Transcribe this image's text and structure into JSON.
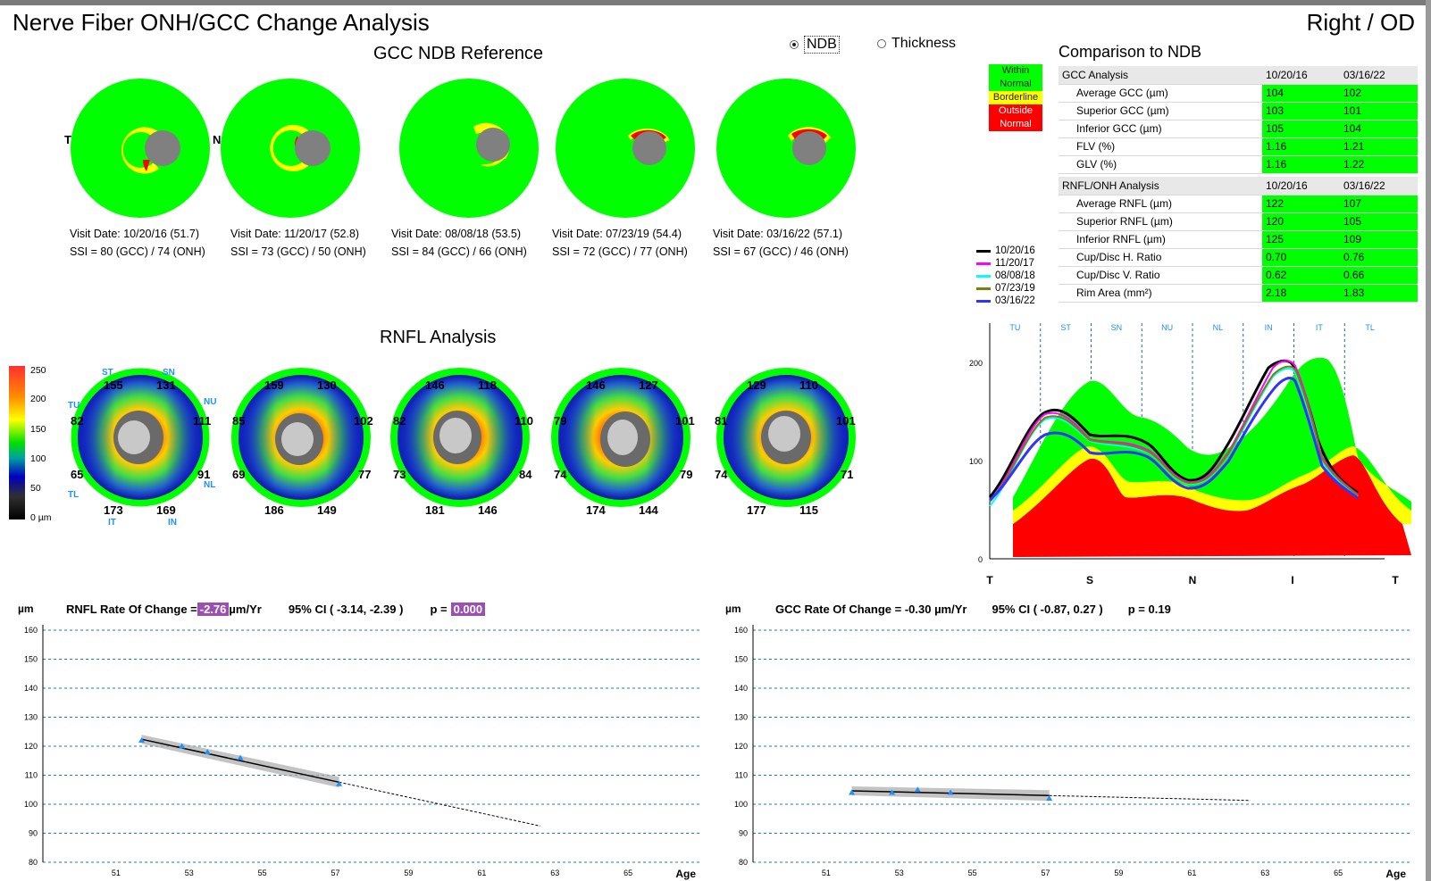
{
  "header": {
    "title": "Nerve Fiber ONH/GCC Change Analysis",
    "eye": "Right / OD"
  },
  "gcc_section": {
    "title": "GCC NDB Reference",
    "radio_ndb": "NDB",
    "radio_thickness": "Thickness",
    "label_t": "T",
    "label_n": "N",
    "visits": [
      {
        "date": "Visit Date: 10/20/16 (51.7)",
        "ssi": "SSI = 80 (GCC) / 74 (ONH)"
      },
      {
        "date": "Visit Date: 11/20/17 (52.8)",
        "ssi": "SSI = 73 (GCC) / 50 (ONH)"
      },
      {
        "date": "Visit Date: 08/08/18 (53.5)",
        "ssi": "SSI = 84 (GCC) / 66 (ONH)"
      },
      {
        "date": "Visit Date: 07/23/19 (54.4)",
        "ssi": "SSI = 72 (GCC) / 77 (ONH)"
      },
      {
        "date": "Visit Date: 03/16/22 (57.1)",
        "ssi": "SSI = 67 (GCC) / 46 (ONH)"
      }
    ]
  },
  "ndb_legend": {
    "within": "Within Normal",
    "borderline": "Borderline",
    "outside": "Outside Normal",
    "colors": {
      "within": "#00ff00",
      "borderline": "#ffff00",
      "outside": "#ff0000"
    }
  },
  "comparison": {
    "title": "Comparison to NDB",
    "gcc_header": {
      "label": "GCC Analysis",
      "d1": "10/20/16",
      "d2": "03/16/22"
    },
    "gcc_rows": [
      {
        "label": "Average GCC (µm)",
        "v1": "104",
        "v2": "102"
      },
      {
        "label": "Superior GCC (µm)",
        "v1": "103",
        "v2": "101"
      },
      {
        "label": "Inferior GCC (µm)",
        "v1": "105",
        "v2": "104"
      },
      {
        "label": "FLV (%)",
        "v1": "1.16",
        "v2": "1.21"
      },
      {
        "label": "GLV (%)",
        "v1": "1.16",
        "v2": "1.22"
      }
    ],
    "rnfl_header": {
      "label": "RNFL/ONH Analysis",
      "d1": "10/20/16",
      "d2": "03/16/22"
    },
    "rnfl_rows": [
      {
        "label": "Average RNFL (µm)",
        "v1": "122",
        "v2": "107"
      },
      {
        "label": "Superior RNFL (µm)",
        "v1": "120",
        "v2": "105"
      },
      {
        "label": "Inferior RNFL (µm)",
        "v1": "125",
        "v2": "109"
      },
      {
        "label": "Cup/Disc H. Ratio",
        "v1": "0.70",
        "v2": "0.76"
      },
      {
        "label": "Cup/Disc V. Ratio",
        "v1": "0.62",
        "v2": "0.66"
      },
      {
        "label": "Rim Area (mm²)",
        "v1": "2.18",
        "v2": "1.83"
      }
    ]
  },
  "visit_legend": [
    {
      "date": "10/20/16",
      "color": "#000000"
    },
    {
      "date": "11/20/17",
      "color": "#ff00ff"
    },
    {
      "date": "08/08/18",
      "color": "#00ffff"
    },
    {
      "date": "07/23/19",
      "color": "#808000"
    },
    {
      "date": "03/16/22",
      "color": "#3333ff"
    }
  ],
  "rnfl_section": {
    "title": "RNFL Analysis",
    "scale_labels": [
      "250",
      "200",
      "150",
      "100",
      "50",
      "0 µm"
    ],
    "sector_labels": {
      "st": "ST",
      "sn": "SN",
      "tu": "TU",
      "nu": "NU",
      "tl": "TL",
      "nl": "NL",
      "it": "IT",
      "in": "IN"
    },
    "maps": [
      {
        "st": "155",
        "sn": "131",
        "t": "82",
        "n": "111",
        "tl": "65",
        "nl": "91",
        "it": "173",
        "in": "169"
      },
      {
        "st": "159",
        "sn": "130",
        "t": "85",
        "n": "102",
        "tl": "69",
        "nl": "77",
        "it": "186",
        "in": "149"
      },
      {
        "st": "146",
        "sn": "118",
        "t": "82",
        "n": "110",
        "tl": "73",
        "nl": "84",
        "it": "181",
        "in": "146"
      },
      {
        "st": "146",
        "sn": "127",
        "t": "79",
        "n": "101",
        "tl": "74",
        "nl": "79",
        "it": "174",
        "in": "144"
      },
      {
        "st": "129",
        "sn": "110",
        "t": "81",
        "n": "101",
        "tl": "74",
        "nl": "71",
        "it": "177",
        "in": "115"
      }
    ]
  },
  "tsnit_chart": {
    "sector_labels": [
      "TU",
      "ST",
      "SN",
      "NU",
      "NL",
      "IN",
      "IT",
      "TL"
    ],
    "x_labels": [
      "T",
      "S",
      "N",
      "I",
      "T"
    ],
    "y_ticks": [
      "0",
      "100",
      "200"
    ],
    "ylim": [
      0,
      250
    ]
  },
  "chart_data": [
    {
      "type": "scatter",
      "title": "RNFL Rate Of Change",
      "rate_label": "RNFL Rate Of Change =",
      "rate_value": "-2.76",
      "rate_unit": "µm/Yr",
      "ci": "95% CI ( -3.14, -2.39 )",
      "p_label": "p =",
      "p_value": "0.000",
      "ylabel": "µm",
      "xlabel": "Age",
      "ylim": [
        80,
        160
      ],
      "xlim": [
        49,
        67
      ],
      "y_ticks": [
        "160",
        "150",
        "140",
        "130",
        "120",
        "110",
        "100",
        "90",
        "80"
      ],
      "x_ticks": [
        "51",
        "53",
        "55",
        "57",
        "59",
        "61",
        "63",
        "65"
      ],
      "points": [
        {
          "x": 51.7,
          "y": 122
        },
        {
          "x": 52.8,
          "y": 120
        },
        {
          "x": 53.5,
          "y": 118
        },
        {
          "x": 54.4,
          "y": 116
        },
        {
          "x": 57.1,
          "y": 107
        }
      ],
      "fit_line": {
        "x": [
          51.7,
          57.1
        ],
        "y": [
          122.4,
          107.6
        ]
      },
      "projection": {
        "x": [
          57.1,
          62.6
        ],
        "y": [
          107.6,
          92.5
        ]
      }
    },
    {
      "type": "scatter",
      "title": "GCC Rate Of Change",
      "rate_label": "GCC Rate Of Change = -0.30 µm/Yr",
      "ci": "95% CI ( -0.87, 0.27 )",
      "p_label": "p = 0.19",
      "ylabel": "µm",
      "xlabel": "Age",
      "ylim": [
        80,
        160
      ],
      "xlim": [
        49,
        67
      ],
      "y_ticks": [
        "160",
        "150",
        "140",
        "130",
        "120",
        "110",
        "100",
        "90",
        "80"
      ],
      "x_ticks": [
        "51",
        "53",
        "55",
        "57",
        "59",
        "61",
        "63",
        "65"
      ],
      "points": [
        {
          "x": 51.7,
          "y": 104
        },
        {
          "x": 52.8,
          "y": 104
        },
        {
          "x": 53.5,
          "y": 105
        },
        {
          "x": 54.4,
          "y": 104
        },
        {
          "x": 57.1,
          "y": 102
        }
      ],
      "fit_line": {
        "x": [
          51.7,
          57.1
        ],
        "y": [
          104.6,
          103.0
        ]
      },
      "projection": {
        "x": [
          57.1,
          62.6
        ],
        "y": [
          103.0,
          101.3
        ]
      }
    }
  ]
}
